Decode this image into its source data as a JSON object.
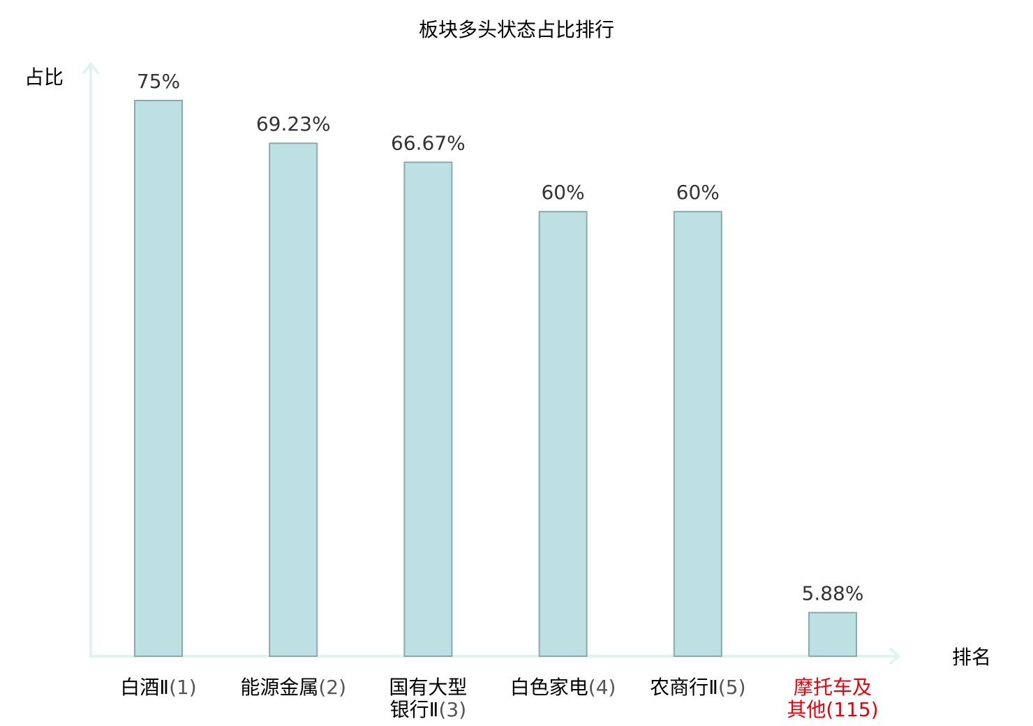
{
  "chart_data": {
    "type": "bar",
    "title": "板块多头状态占比排行",
    "ylabel": "占比",
    "xlabel": "排名",
    "ylim": [
      0,
      80
    ],
    "grid": false,
    "legend": "none",
    "categories": [
      {
        "lines": [
          "白酒Ⅱ"
        ],
        "rank": "(1)"
      },
      {
        "lines": [
          "能源金属"
        ],
        "rank": "(2)"
      },
      {
        "lines": [
          "国有大型",
          "银行Ⅱ"
        ],
        "rank": "(3)"
      },
      {
        "lines": [
          "白色家电"
        ],
        "rank": "(4)"
      },
      {
        "lines": [
          "农商行Ⅱ"
        ],
        "rank": "(5)"
      },
      {
        "lines": [
          "摩托车及",
          "其他"
        ],
        "rank": "(115)",
        "highlight": true
      }
    ],
    "values": [
      75,
      69.23,
      66.67,
      60,
      60,
      5.88
    ],
    "value_labels": [
      "75%",
      "69.23%",
      "66.67%",
      "60%",
      "60%",
      "5.88%"
    ],
    "colors": {
      "bar_fill": "#bde0e3",
      "bar_stroke": "#8aa9ab",
      "axis": "#e0f3f1",
      "highlight_text": "#e8000b"
    }
  }
}
